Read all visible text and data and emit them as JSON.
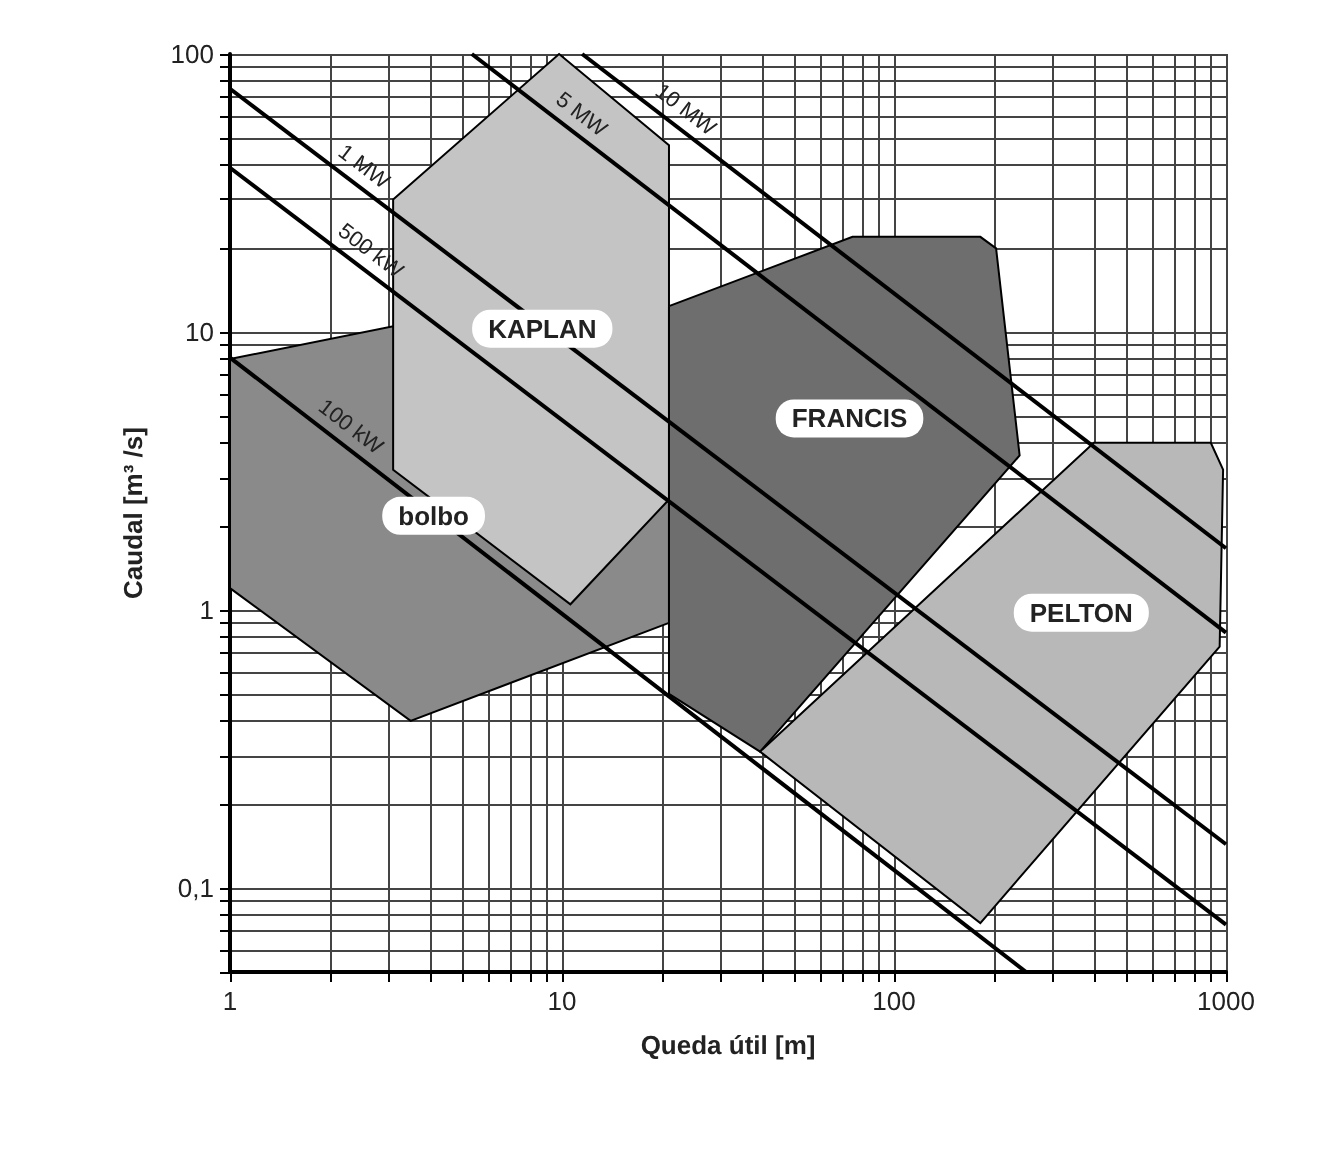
{
  "chart_data": {
    "type": "line",
    "xlabel": "Queda útil [m]",
    "ylabel": "Caudal [m³ /s]",
    "log": "xy",
    "grid": true,
    "xlim": [
      1,
      1000
    ],
    "xticks": [
      1,
      10,
      100,
      1000
    ],
    "ylim": [
      0.05,
      100
    ],
    "yticks": [
      {
        "value": 0.1,
        "label": "0,1"
      },
      1,
      10,
      100
    ],
    "series": [
      {
        "name": "bolbo",
        "type": "area",
        "color": "#8a8a8a",
        "x": [
          1,
          3.1,
          21,
          21,
          3.5,
          1
        ],
        "values": [
          8,
          10.5,
          3,
          0.9,
          0.4,
          1.2
        ]
      },
      {
        "name": "KAPLAN",
        "type": "area",
        "color": "#c4c4c4",
        "x": [
          3.1,
          9.8,
          21,
          21,
          10.6,
          3.1
        ],
        "values": [
          30,
          100,
          47,
          2.5,
          1.05,
          3.2
        ]
      },
      {
        "name": "FRANCIS",
        "type": "area",
        "color": "#6e6e6e",
        "x": [
          21,
          75,
          182,
          203,
          239,
          39.5,
          21
        ],
        "values": [
          12.4,
          22,
          22,
          20,
          3.6,
          0.31,
          0.5
        ]
      },
      {
        "name": "PELTON",
        "type": "area",
        "color": "#b8b8b8",
        "x": [
          39.5,
          400,
          900,
          980,
          957,
          182
        ],
        "values": [
          0.31,
          4,
          4,
          3.2,
          0.74,
          0.075
        ]
      },
      {
        "name": "100 kW",
        "color": "#000000",
        "x": [
          1,
          250
        ],
        "values": [
          8.1,
          0.05
        ]
      },
      {
        "name": "500 kW",
        "color": "#000000",
        "x": [
          1,
          1000
        ],
        "values": [
          39,
          0.074
        ]
      },
      {
        "name": "1 MW",
        "color": "#000000",
        "x": [
          1,
          1000
        ],
        "values": [
          75,
          0.144
        ]
      },
      {
        "name": "5 MW",
        "color": "#000000",
        "x": [
          5.35,
          1000
        ],
        "values": [
          100,
          0.83
        ]
      },
      {
        "name": "10 MW",
        "color": "#000000",
        "x": [
          11.5,
          1000
        ],
        "values": [
          100,
          1.67
        ]
      }
    ]
  }
}
